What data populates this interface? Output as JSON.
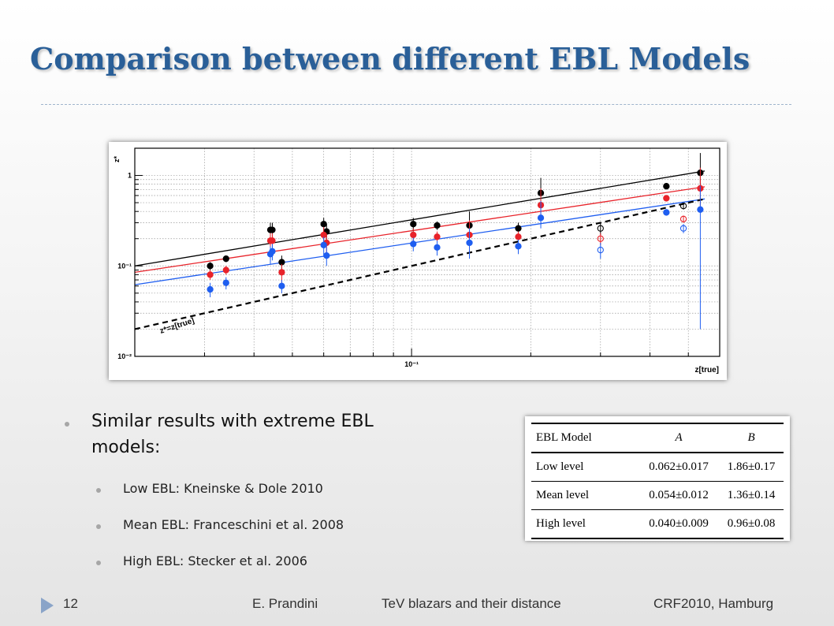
{
  "slide": {
    "title": "Comparison between different EBL Models",
    "bullets": {
      "main": "Similar results with extreme EBL models:",
      "sub": [
        "Low EBL: Kneinske & Dole 2010",
        "Mean EBL: Franceschini et al. 2008",
        "High EBL: Stecker et al. 2006"
      ]
    },
    "table": {
      "headers": [
        "EBL Model",
        "A",
        "B"
      ],
      "rows": [
        [
          "Low level",
          "0.062±0.017",
          "1.86±0.17"
        ],
        [
          "Mean level",
          "0.054±0.012",
          "1.36±0.14"
        ],
        [
          "High level",
          "0.040±0.009",
          "0.96±0.08"
        ]
      ]
    },
    "footer": {
      "page": "12",
      "author": "E. Prandini",
      "talk": "TeV blazars and their distance",
      "event": "CRF2010, Hamburg"
    },
    "colors": {
      "title": "#2a5f98",
      "black": "#000000",
      "red": "#e8232a",
      "blue": "#1f5ef0"
    }
  },
  "chart_data": {
    "type": "scatter",
    "xlabel": "z[true]",
    "ylabel": "z*",
    "x_scale": "log",
    "y_scale": "log",
    "xlim": [
      0.02,
      0.6
    ],
    "ylim": [
      0.01,
      2
    ],
    "x_tick_labels": [
      "10⁻¹"
    ],
    "y_tick_labels": [
      "10⁻²",
      "10⁻¹",
      "1"
    ],
    "grid": true,
    "annotation": "z*=z[true]",
    "series": [
      {
        "color": "#000000",
        "points": [
          {
            "x": 0.031,
            "y": 0.1,
            "err": [
              0.01,
              0.01
            ]
          },
          {
            "x": 0.034,
            "y": 0.12,
            "err": [
              0.01,
              0.01
            ]
          },
          {
            "x": 0.044,
            "y": 0.25,
            "err": [
              0.05,
              0.05
            ]
          },
          {
            "x": 0.0445,
            "y": 0.25,
            "err": [
              0.05,
              0.05
            ]
          },
          {
            "x": 0.047,
            "y": 0.11,
            "err": [
              0.02,
              0.02
            ]
          },
          {
            "x": 0.06,
            "y": 0.29,
            "err": [
              0.07,
              0.05
            ]
          },
          {
            "x": 0.061,
            "y": 0.24,
            "err": [
              0.05,
              0.05
            ]
          },
          {
            "x": 0.101,
            "y": 0.29,
            "err": [
              0.05,
              0.05
            ]
          },
          {
            "x": 0.116,
            "y": 0.28,
            "err": [
              0.03,
              0.03
            ]
          },
          {
            "x": 0.14,
            "y": 0.28,
            "err": [
              0.1,
              0.12
            ]
          },
          {
            "x": 0.186,
            "y": 0.26,
            "err": [
              0.04,
              0.04
            ]
          },
          {
            "x": 0.212,
            "y": 0.64,
            "err": [
              0.12,
              0.3
            ]
          },
          {
            "x": 0.3,
            "y": 0.26,
            "err": [
              0.04,
              0.04
            ],
            "open": true
          },
          {
            "x": 0.44,
            "y": 0.76,
            "err": [
              0.05,
              0.05
            ]
          },
          {
            "x": 0.486,
            "y": 0.46,
            "err": [
              0.04,
              0.04
            ],
            "open": true
          },
          {
            "x": 0.536,
            "y": 1.07,
            "err": [
              0.4,
              0.7
            ]
          }
        ]
      },
      {
        "color": "#e8232a",
        "points": [
          {
            "x": 0.031,
            "y": 0.08,
            "err": [
              0.01,
              0.01
            ]
          },
          {
            "x": 0.034,
            "y": 0.09,
            "err": [
              0.01,
              0.01
            ]
          },
          {
            "x": 0.044,
            "y": 0.19,
            "err": [
              0.04,
              0.04
            ]
          },
          {
            "x": 0.0445,
            "y": 0.19,
            "err": [
              0.04,
              0.04
            ]
          },
          {
            "x": 0.047,
            "y": 0.085,
            "err": [
              0.02,
              0.02
            ]
          },
          {
            "x": 0.06,
            "y": 0.22,
            "err": [
              0.05,
              0.05
            ]
          },
          {
            "x": 0.061,
            "y": 0.18,
            "err": [
              0.04,
              0.04
            ]
          },
          {
            "x": 0.101,
            "y": 0.22,
            "err": [
              0.04,
              0.04
            ]
          },
          {
            "x": 0.116,
            "y": 0.21,
            "err": [
              0.03,
              0.03
            ]
          },
          {
            "x": 0.14,
            "y": 0.22,
            "err": [
              0.08,
              0.1
            ]
          },
          {
            "x": 0.186,
            "y": 0.21,
            "err": [
              0.03,
              0.03
            ]
          },
          {
            "x": 0.212,
            "y": 0.47,
            "err": [
              0.1,
              0.25
            ]
          },
          {
            "x": 0.3,
            "y": 0.2,
            "err": [
              0.03,
              0.03
            ],
            "open": true
          },
          {
            "x": 0.44,
            "y": 0.56,
            "err": [
              0.04,
              0.04
            ]
          },
          {
            "x": 0.486,
            "y": 0.33,
            "err": [
              0.03,
              0.03
            ],
            "open": true
          },
          {
            "x": 0.536,
            "y": 0.72,
            "err": [
              0.3,
              0.5
            ]
          }
        ]
      },
      {
        "color": "#1f5ef0",
        "points": [
          {
            "x": 0.031,
            "y": 0.055,
            "err": [
              0.01,
              0.01
            ]
          },
          {
            "x": 0.034,
            "y": 0.065,
            "err": [
              0.01,
              0.01
            ]
          },
          {
            "x": 0.044,
            "y": 0.135,
            "err": [
              0.03,
              0.03
            ]
          },
          {
            "x": 0.0445,
            "y": 0.145,
            "err": [
              0.03,
              0.03
            ]
          },
          {
            "x": 0.047,
            "y": 0.06,
            "err": [
              0.01,
              0.01
            ]
          },
          {
            "x": 0.06,
            "y": 0.17,
            "err": [
              0.04,
              0.04
            ]
          },
          {
            "x": 0.061,
            "y": 0.13,
            "err": [
              0.03,
              0.03
            ]
          },
          {
            "x": 0.101,
            "y": 0.175,
            "err": [
              0.03,
              0.03
            ]
          },
          {
            "x": 0.116,
            "y": 0.16,
            "err": [
              0.03,
              0.03
            ]
          },
          {
            "x": 0.14,
            "y": 0.18,
            "err": [
              0.06,
              0.08
            ]
          },
          {
            "x": 0.186,
            "y": 0.165,
            "err": [
              0.03,
              0.03
            ]
          },
          {
            "x": 0.212,
            "y": 0.34,
            "err": [
              0.08,
              0.18
            ]
          },
          {
            "x": 0.3,
            "y": 0.15,
            "err": [
              0.03,
              0.03
            ],
            "open": true
          },
          {
            "x": 0.44,
            "y": 0.39,
            "err": [
              0.03,
              0.03
            ]
          },
          {
            "x": 0.486,
            "y": 0.26,
            "err": [
              0.03,
              0.03
            ],
            "open": true
          },
          {
            "x": 0.536,
            "y": 0.42,
            "err": [
              0.4,
              0.35
            ]
          }
        ]
      }
    ],
    "fit_lines": [
      {
        "color": "#000000",
        "x": [
          0.02,
          0.55
        ],
        "y": [
          0.1,
          1.12
        ],
        "style": "solid"
      },
      {
        "color": "#e8232a",
        "x": [
          0.02,
          0.55
        ],
        "y": [
          0.085,
          0.75
        ],
        "style": "solid"
      },
      {
        "color": "#1f5ef0",
        "x": [
          0.02,
          0.55
        ],
        "y": [
          0.062,
          0.55
        ],
        "style": "solid"
      },
      {
        "color": "#000000",
        "x": [
          0.02,
          0.55
        ],
        "y": [
          0.02,
          0.55
        ],
        "style": "dashed"
      }
    ]
  }
}
